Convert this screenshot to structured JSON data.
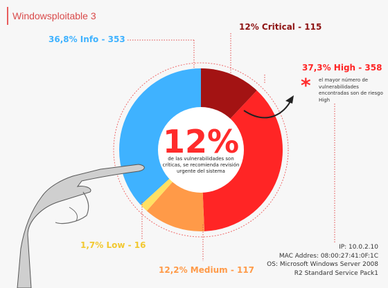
{
  "window_title": "Windowsploitable 3",
  "colors": {
    "critical": "#a31313",
    "high": "#ff2525",
    "medium": "#ff9a48",
    "low": "#ffe063",
    "info": "#3fb2ff",
    "accent": "#ff2b2b"
  },
  "chart_data": {
    "type": "pie",
    "variant": "donut",
    "categories": [
      "Critical",
      "High",
      "Medium",
      "Low",
      "Info"
    ],
    "values": [
      115,
      358,
      117,
      16,
      353
    ],
    "percent_labels": [
      "12%",
      "37,3%",
      "12,2%",
      "1,7%",
      "36,8%"
    ],
    "slice_labels": [
      "12% Critical - 115",
      "37,3% High - 358",
      "12,2% Medium - 117",
      "1,7% Low - 16",
      "36,8% Info - 353"
    ],
    "center_value": "12%",
    "center_text": "de las vulnerabilidades son críticas, se recomienda revisión urgente del sistema",
    "annotation_symbol": "*",
    "annotation": "el mayor número de vulnerabilidades encontradas son de riesgo High"
  },
  "host_info": {
    "line1": "IP: 10.0.2.10",
    "line2": "MAC Addres: 08:00:27:41:0F:1C",
    "line3": "OS: Microsoft Windows Server 2008",
    "line4": "R2 Standard Service Pack1"
  }
}
